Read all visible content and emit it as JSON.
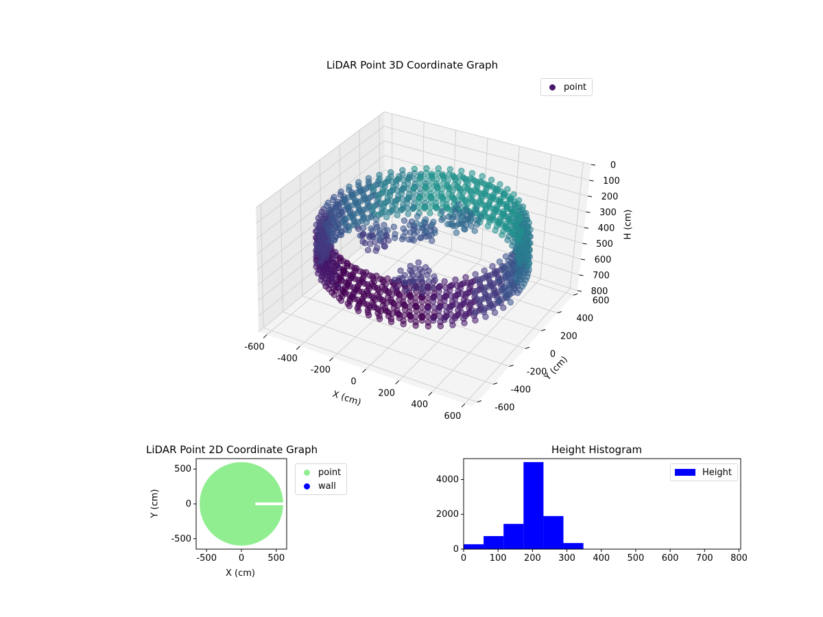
{
  "chart_data": [
    {
      "type": "scatter3d",
      "title": "LiDAR Point 3D Coordinate Graph",
      "xlabel": "X (cm)",
      "ylabel": "Y (cm)",
      "zlabel": "H (cm)",
      "xlim": [
        -650,
        650
      ],
      "ylim": [
        -650,
        650
      ],
      "zlim": [
        800,
        0
      ],
      "xticks": [
        -600,
        -400,
        -200,
        0,
        200,
        400,
        600
      ],
      "yticks": [
        -600,
        -400,
        -200,
        0,
        200,
        400,
        600
      ],
      "zticks": [
        0,
        100,
        200,
        300,
        400,
        500,
        600,
        700,
        800
      ],
      "legend": [
        {
          "name": "point",
          "color": "#46176b"
        }
      ],
      "legend_position": "top-right",
      "colormap": "viridis",
      "grid": true,
      "series": [
        {
          "name": "point",
          "shape": "ring",
          "radius": 580,
          "h_top": 220,
          "h_bottom": 480
        },
        {
          "name": "point",
          "shape": "clusters",
          "centers": [
            [
              120,
              200,
              210
            ],
            [
              -60,
              50,
              250
            ],
            [
              -250,
              -100,
              270
            ],
            [
              50,
              -200,
              390
            ]
          ]
        }
      ]
    },
    {
      "type": "scatter",
      "title": "LiDAR Point 2D Coordinate Graph",
      "xlabel": "X (cm)",
      "ylabel": "Y (cm)",
      "xlim": [
        -650,
        650
      ],
      "ylim": [
        -650,
        650
      ],
      "xticks": [
        -500,
        0,
        500
      ],
      "yticks": [
        -500,
        0,
        500
      ],
      "legend": [
        {
          "name": "point",
          "color": "#90ee90"
        },
        {
          "name": "wall",
          "color": "#0000ff"
        }
      ],
      "legend_position": "outside-right",
      "series": [
        {
          "name": "point",
          "shape": "disc",
          "center": [
            0,
            0
          ],
          "radius": 600,
          "color": "#90ee90"
        }
      ]
    },
    {
      "type": "bar",
      "title": "Height Histogram",
      "xlim": [
        0,
        805
      ],
      "ylim": [
        0,
        5200
      ],
      "xticks": [
        0,
        100,
        200,
        300,
        400,
        500,
        600,
        700,
        800
      ],
      "yticks": [
        0,
        2000,
        4000
      ],
      "legend": [
        {
          "name": "Height",
          "color": "#0000ff"
        }
      ],
      "legend_position": "top-right",
      "bin_edges": [
        0,
        58,
        116,
        174,
        232,
        290,
        348,
        406,
        464,
        522,
        580,
        638,
        696,
        754,
        805
      ],
      "counts": [
        280,
        750,
        1450,
        5000,
        1900,
        350,
        0,
        0,
        0,
        0,
        0,
        0,
        0,
        0
      ],
      "color": "#0000ff"
    }
  ]
}
